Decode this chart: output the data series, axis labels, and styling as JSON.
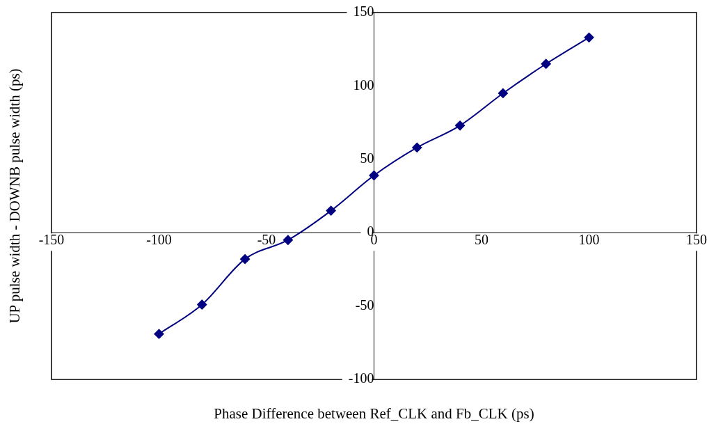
{
  "chart_data": {
    "type": "line",
    "xlabel": "Phase Difference between Ref_CLK and Fb_CLK (ps)",
    "ylabel": "UP pulse width - DOWNB pulse width (ps)",
    "x": [
      -100,
      -80,
      -60,
      -40,
      -20,
      0,
      20,
      40,
      60,
      80,
      100
    ],
    "series": [
      {
        "color": "#000080",
        "values": [
          -69,
          -49,
          -18,
          -5,
          15,
          39,
          58,
          73,
          95,
          115,
          133
        ]
      }
    ],
    "xlim": [
      -150,
      150
    ],
    "xticks": [
      -150,
      -100,
      -50,
      0,
      50,
      100,
      150
    ],
    "ylim": [
      -100,
      150
    ],
    "yticks": [
      -100,
      -50,
      0,
      50,
      100,
      150
    ],
    "marker": "diamond",
    "line_style": "solid"
  }
}
